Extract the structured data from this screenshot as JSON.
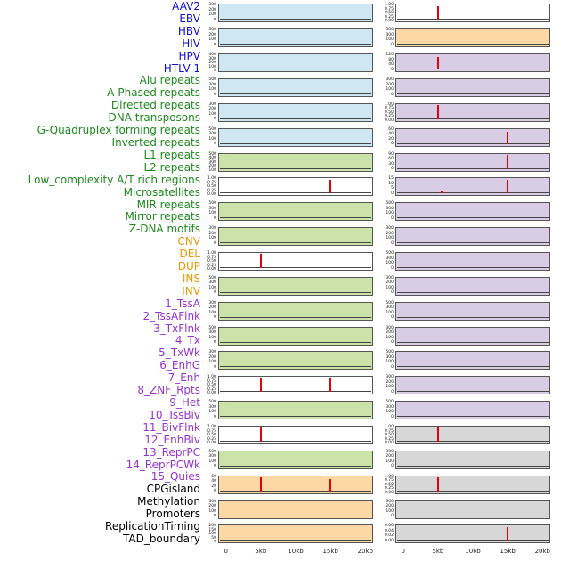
{
  "figure_title": "",
  "group_text_colors": {
    "virus": "#1010cc",
    "repeat": "#1f8a1f",
    "sv": "#f09800",
    "chromhmm": "#9a33cc",
    "other": "#000000"
  },
  "panel_bg_colors": {
    "virus": "#cfe6f3",
    "repeat": "#cbe2a8",
    "sv": "#fcd9a4",
    "chromhmm": "#d9cde6",
    "other": "#d7d7d7",
    "unit": "#ffffff"
  },
  "spike_color": "#e8000b",
  "track_labels": [
    {
      "text": "AAV2",
      "group": "virus"
    },
    {
      "text": "EBV",
      "group": "virus"
    },
    {
      "text": "HBV",
      "group": "virus"
    },
    {
      "text": "HIV",
      "group": "virus"
    },
    {
      "text": "HPV",
      "group": "virus"
    },
    {
      "text": "HTLV-1",
      "group": "virus"
    },
    {
      "text": "Alu repeats",
      "group": "repeat"
    },
    {
      "text": "A-Phased repeats",
      "group": "repeat"
    },
    {
      "text": "Directed repeats",
      "group": "repeat"
    },
    {
      "text": "DNA transposons",
      "group": "repeat"
    },
    {
      "text": "G-Quadruplex forming repeats",
      "group": "repeat"
    },
    {
      "text": "Inverted repeats",
      "group": "repeat"
    },
    {
      "text": "L1 repeats",
      "group": "repeat"
    },
    {
      "text": "L2 repeats",
      "group": "repeat"
    },
    {
      "text": "Low_complexity A/T rich regions",
      "group": "repeat"
    },
    {
      "text": "Microsatellites",
      "group": "repeat"
    },
    {
      "text": "MIR repeats",
      "group": "repeat"
    },
    {
      "text": "Mirror repeats",
      "group": "repeat"
    },
    {
      "text": "Z-DNA motifs",
      "group": "repeat"
    },
    {
      "text": "CNV",
      "group": "sv"
    },
    {
      "text": "DEL",
      "group": "sv"
    },
    {
      "text": "DUP",
      "group": "sv"
    },
    {
      "text": "INS",
      "group": "sv"
    },
    {
      "text": "INV",
      "group": "sv"
    },
    {
      "text": "1_TssA",
      "group": "chromhmm"
    },
    {
      "text": "2_TssAFlnk",
      "group": "chromhmm"
    },
    {
      "text": "3_TxFlnk",
      "group": "chromhmm"
    },
    {
      "text": "4_Tx",
      "group": "chromhmm"
    },
    {
      "text": "5_TxWk",
      "group": "chromhmm"
    },
    {
      "text": "6_EnhG",
      "group": "chromhmm"
    },
    {
      "text": "7_Enh",
      "group": "chromhmm"
    },
    {
      "text": "8_ZNF_Rpts",
      "group": "chromhmm"
    },
    {
      "text": "9_Het",
      "group": "chromhmm"
    },
    {
      "text": "10_TssBiv",
      "group": "chromhmm"
    },
    {
      "text": "11_BivFlnk",
      "group": "chromhmm"
    },
    {
      "text": "12_EnhBiv",
      "group": "chromhmm"
    },
    {
      "text": "13_ReprPC",
      "group": "chromhmm"
    },
    {
      "text": "14_ReprPCWk",
      "group": "chromhmm"
    },
    {
      "text": "15_Quies",
      "group": "chromhmm"
    },
    {
      "text": "CPGisland",
      "group": "other"
    },
    {
      "text": "Methylation",
      "group": "other"
    },
    {
      "text": "Promoters",
      "group": "other"
    },
    {
      "text": "ReplicationTiming",
      "group": "other"
    },
    {
      "text": "TAD_boundary",
      "group": "other"
    }
  ],
  "chart_data": {
    "type": "line",
    "x_ticks": [
      "0",
      "5kb",
      "10kb",
      "15kb",
      "20kb"
    ],
    "x_range_kb": [
      0,
      20
    ],
    "grid": false,
    "legend": "none",
    "description_of_marks": "each small panel shows a near-zero baseline trace with occasional tall red enrichment spikes at 5kb or 15kb",
    "columns": [
      {
        "name": "left",
        "panels": [
          {
            "track": "AAV2",
            "bg": "virus",
            "yticks": [
              "300",
              "200",
              "100",
              "0"
            ],
            "spikes": []
          },
          {
            "track": "EBV",
            "bg": "virus",
            "yticks": [
              "300",
              "200",
              "100",
              "0"
            ],
            "spikes": []
          },
          {
            "track": "HBV",
            "bg": "virus",
            "yticks": [
              "400",
              "300",
              "200",
              "100",
              "0"
            ],
            "spikes": []
          },
          {
            "track": "HIV",
            "bg": "virus",
            "yticks": [
              "500",
              "300",
              "100",
              "0"
            ],
            "spikes": []
          },
          {
            "track": "HPV",
            "bg": "virus",
            "yticks": [
              "300",
              "200",
              "100",
              "0"
            ],
            "spikes": []
          },
          {
            "track": "HTLV-1",
            "bg": "virus",
            "yticks": [
              "500",
              "300",
              "100",
              "0"
            ],
            "spikes": []
          },
          {
            "track": "Alu repeats",
            "bg": "repeat",
            "yticks": [
              "500",
              "400",
              "300",
              "200",
              "100"
            ],
            "spikes": []
          },
          {
            "track": "A-Phased repeats",
            "bg": "unit",
            "yticks": [
              "1.00",
              "0.75",
              "0.50",
              "0.25",
              "0.00"
            ],
            "spikes": [
              {
                "kb": 15,
                "h": 1
              }
            ]
          },
          {
            "track": "Directed repeats",
            "bg": "repeat",
            "yticks": [
              "500",
              "300",
              "100",
              "0"
            ],
            "spikes": []
          },
          {
            "track": "DNA transposons",
            "bg": "repeat",
            "yticks": [
              "300",
              "200",
              "100",
              "0"
            ],
            "spikes": []
          },
          {
            "track": "G-Quadruplex forming repeats",
            "bg": "unit",
            "yticks": [
              "1.00",
              "0.75",
              "0.50",
              "0.25",
              "0.00"
            ],
            "spikes": [
              {
                "kb": 5,
                "h": 1
              }
            ]
          },
          {
            "track": "Inverted repeats",
            "bg": "repeat",
            "yticks": [
              "500",
              "300",
              "100",
              "0"
            ],
            "spikes": []
          },
          {
            "track": "L1 repeats",
            "bg": "repeat",
            "yticks": [
              "300",
              "200",
              "100",
              "0"
            ],
            "spikes": []
          },
          {
            "track": "L2 repeats",
            "bg": "repeat",
            "yticks": [
              "500",
              "300",
              "100",
              "0"
            ],
            "spikes": []
          },
          {
            "track": "Low_complexity A/T rich regions",
            "bg": "repeat",
            "yticks": [
              "300",
              "200",
              "100",
              "0"
            ],
            "spikes": []
          },
          {
            "track": "Microsatellites",
            "bg": "unit",
            "yticks": [
              "1.00",
              "0.75",
              "0.50",
              "0.25",
              "0.00"
            ],
            "spikes": [
              {
                "kb": 5,
                "h": 1
              },
              {
                "kb": 15,
                "h": 1
              }
            ]
          },
          {
            "track": "MIR repeats",
            "bg": "repeat",
            "yticks": [
              "500",
              "300",
              "100",
              "0"
            ],
            "spikes": []
          },
          {
            "track": "Mirror repeats",
            "bg": "unit",
            "yticks": [
              "1.00",
              "0.75",
              "0.50",
              "0.25",
              "0.00"
            ],
            "spikes": [
              {
                "kb": 5,
                "h": 1
              }
            ]
          },
          {
            "track": "Z-DNA motifs",
            "bg": "repeat",
            "yticks": [
              "500",
              "300",
              "100",
              "0"
            ],
            "spikes": []
          },
          {
            "track": "CNV",
            "bg": "sv",
            "yticks": [
              "60",
              "40",
              "20",
              "0"
            ],
            "spikes": [
              {
                "kb": 5,
                "h": 1
              },
              {
                "kb": 15,
                "h": 0.9
              }
            ]
          },
          {
            "track": "DEL",
            "bg": "sv",
            "yticks": [
              "300",
              "200",
              "100",
              "0"
            ],
            "spikes": []
          },
          {
            "track": "DUP",
            "bg": "sv",
            "yticks": [
              "200",
              "150",
              "100",
              "50",
              "0"
            ],
            "spikes": []
          }
        ]
      },
      {
        "name": "right",
        "panels": [
          {
            "track": "INS",
            "bg": "unit",
            "yticks": [
              "1.00",
              "0.75",
              "0.50",
              "0.25",
              "0.00"
            ],
            "spikes": [
              {
                "kb": 5,
                "h": 1
              }
            ]
          },
          {
            "track": "INV",
            "bg": "sv",
            "yticks": [
              "500",
              "300",
              "100",
              "0"
            ],
            "spikes": []
          },
          {
            "track": "1_TssA",
            "bg": "chromhmm",
            "yticks": [
              "120",
              "80",
              "40",
              "0"
            ],
            "spikes": [
              {
                "kb": 5,
                "h": 0.9
              }
            ]
          },
          {
            "track": "2_TssAFlnk",
            "bg": "chromhmm",
            "yticks": [
              "300",
              "200",
              "100",
              "0"
            ],
            "spikes": []
          },
          {
            "track": "3_TxFlnk",
            "bg": "chromhmm",
            "yticks": [
              "1.00",
              "0.75",
              "0.50",
              "0.25",
              "0.00"
            ],
            "spikes": [
              {
                "kb": 5,
                "h": 1
              }
            ]
          },
          {
            "track": "4_Tx",
            "bg": "chromhmm",
            "yticks": [
              "60",
              "40",
              "20",
              "0"
            ],
            "spikes": [
              {
                "kb": 15,
                "h": 0.85
              }
            ]
          },
          {
            "track": "5_TxWk",
            "bg": "chromhmm",
            "yticks": [
              "90",
              "60",
              "30",
              "0"
            ],
            "spikes": [
              {
                "kb": 15,
                "h": 1
              }
            ]
          },
          {
            "track": "6_EnhG",
            "bg": "chromhmm",
            "yticks": [
              "15",
              "10",
              "5",
              "0"
            ],
            "spikes": [
              {
                "kb": 5.5,
                "h": 0.25
              },
              {
                "kb": 15,
                "h": 1
              }
            ]
          },
          {
            "track": "7_Enh",
            "bg": "chromhmm",
            "yticks": [
              "500",
              "300",
              "100",
              "0"
            ],
            "spikes": []
          },
          {
            "track": "8_ZNF_Rpts",
            "bg": "chromhmm",
            "yticks": [
              "300",
              "200",
              "100",
              "0"
            ],
            "spikes": []
          },
          {
            "track": "9_Het",
            "bg": "chromhmm",
            "yticks": [
              "500",
              "300",
              "100",
              "0"
            ],
            "spikes": []
          },
          {
            "track": "10_TssBiv",
            "bg": "chromhmm",
            "yticks": [
              "300",
              "200",
              "100",
              "0"
            ],
            "spikes": []
          },
          {
            "track": "11_BivFlnk",
            "bg": "chromhmm",
            "yticks": [
              "500",
              "300",
              "100",
              "0"
            ],
            "spikes": []
          },
          {
            "track": "12_EnhBiv",
            "bg": "chromhmm",
            "yticks": [
              "300",
              "200",
              "100",
              "0"
            ],
            "spikes": []
          },
          {
            "track": "13_ReprPC",
            "bg": "chromhmm",
            "yticks": [
              "500",
              "300",
              "100",
              "0"
            ],
            "spikes": []
          },
          {
            "track": "14_ReprPCWk",
            "bg": "chromhmm",
            "yticks": [
              "300",
              "200",
              "100",
              "0"
            ],
            "spikes": []
          },
          {
            "track": "15_Quies",
            "bg": "chromhmm",
            "yticks": [
              "500",
              "300",
              "100",
              "0"
            ],
            "spikes": []
          },
          {
            "track": "CPGisland",
            "bg": "other",
            "yticks": [
              "1.00",
              "0.75",
              "0.50",
              "0.25",
              "0.00"
            ],
            "spikes": [
              {
                "kb": 5,
                "h": 1
              }
            ]
          },
          {
            "track": "Methylation",
            "bg": "other",
            "yticks": [
              "300",
              "200",
              "100",
              "0"
            ],
            "spikes": []
          },
          {
            "track": "Promoters",
            "bg": "other",
            "yticks": [
              "1.00",
              "0.75",
              "0.50",
              "0.25",
              "0.00"
            ],
            "spikes": [
              {
                "kb": 5,
                "h": 1
              }
            ]
          },
          {
            "track": "ReplicationTiming",
            "bg": "other",
            "yticks": [
              "300",
              "200",
              "100",
              "0"
            ],
            "spikes": []
          },
          {
            "track": "TAD_boundary",
            "bg": "other",
            "yticks": [
              "0.06",
              "0.04",
              "0.02",
              "0.00"
            ],
            "spikes": [
              {
                "kb": 15,
                "h": 1
              }
            ]
          }
        ]
      }
    ]
  }
}
